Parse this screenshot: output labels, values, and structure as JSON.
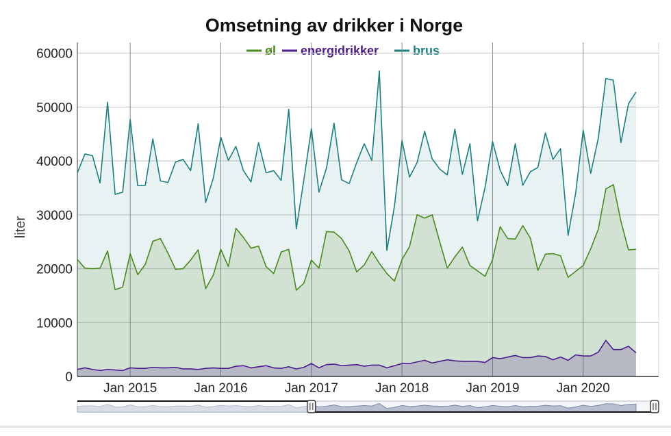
{
  "chart_data": {
    "type": "area",
    "title": "Omsetning av drikker i Norge",
    "xlabel": "",
    "ylabel": "liter",
    "ylim": [
      0,
      62000
    ],
    "xlim": [
      "2014-06",
      "2020-11"
    ],
    "x_ticks": [
      {
        "label": "Jan 2015",
        "date": "2015-01"
      },
      {
        "label": "Jan 2016",
        "date": "2016-01"
      },
      {
        "label": "Jan 2017",
        "date": "2017-01"
      },
      {
        "label": "Jan 2018",
        "date": "2018-01"
      },
      {
        "label": "Jan 2019",
        "date": "2019-01"
      },
      {
        "label": "Jan 2020",
        "date": "2020-01"
      }
    ],
    "y_ticks": [
      0,
      10000,
      20000,
      30000,
      40000,
      50000,
      60000
    ],
    "grid": true,
    "legend_placement": "top-center",
    "start": "2014-06",
    "series": [
      {
        "name": "øl",
        "color": "#4a8a1c",
        "values": [
          21700,
          20100,
          20000,
          20100,
          23300,
          16100,
          16600,
          22800,
          18900,
          20800,
          25100,
          25600,
          22900,
          19900,
          20000,
          21600,
          23500,
          16300,
          18800,
          23600,
          20400,
          27500,
          25800,
          23800,
          24200,
          20400,
          19100,
          23100,
          23600,
          16000,
          17300,
          21600,
          20100,
          26900,
          26800,
          25600,
          23300,
          19400,
          20700,
          23200,
          21000,
          19100,
          17700,
          21700,
          24100,
          30000,
          29400,
          30000,
          25000,
          20100,
          22200,
          24000,
          20600,
          19600,
          18600,
          21700,
          27800,
          25600,
          25500,
          28000,
          25700,
          19700,
          22700,
          22800,
          22400,
          18400,
          19500,
          20600,
          23700,
          27300,
          34800,
          35600,
          28800,
          23500,
          23600
        ]
      },
      {
        "name": "energidrikker",
        "color": "#4b1a8c",
        "values": [
          1300,
          1600,
          1300,
          1100,
          1300,
          1200,
          1100,
          1600,
          1500,
          1500,
          1700,
          1600,
          1600,
          1700,
          1400,
          1400,
          1300,
          1500,
          1600,
          1500,
          1500,
          1900,
          2000,
          1600,
          1800,
          2000,
          1600,
          1500,
          1800,
          1400,
          1700,
          2400,
          1600,
          2200,
          2300,
          2000,
          2100,
          2200,
          1900,
          2100,
          2100,
          1600,
          2000,
          2400,
          2400,
          2700,
          3000,
          2500,
          2800,
          3100,
          2900,
          2800,
          2800,
          2800,
          2600,
          3500,
          3300,
          3600,
          3900,
          3500,
          3500,
          3800,
          3700,
          3100,
          3600,
          3000,
          4000,
          3800,
          3800,
          4500,
          6700,
          5000,
          5000,
          5600,
          4400
        ]
      },
      {
        "name": "brus",
        "color": "#1a7f7f",
        "values": [
          37800,
          41300,
          41000,
          35900,
          50900,
          33800,
          34200,
          47700,
          35400,
          35500,
          44100,
          36300,
          36000,
          39800,
          40300,
          38200,
          46900,
          32300,
          36800,
          44400,
          40100,
          42700,
          38200,
          36100,
          43400,
          37800,
          38200,
          36400,
          49600,
          27400,
          36500,
          46000,
          34200,
          38700,
          47000,
          36500,
          35800,
          39700,
          43200,
          40100,
          56700,
          23400,
          31600,
          43800,
          37000,
          39700,
          45500,
          40400,
          38500,
          37400,
          45900,
          37500,
          43200,
          28900,
          35100,
          43600,
          38300,
          35400,
          43200,
          35500,
          38000,
          38800,
          45200,
          40300,
          42300,
          26200,
          34000,
          45700,
          37700,
          44200,
          55300,
          55000,
          43400,
          50600,
          52800
        ]
      }
    ],
    "range_selector": {
      "from": "2014-06",
      "to": "2020-11"
    }
  }
}
